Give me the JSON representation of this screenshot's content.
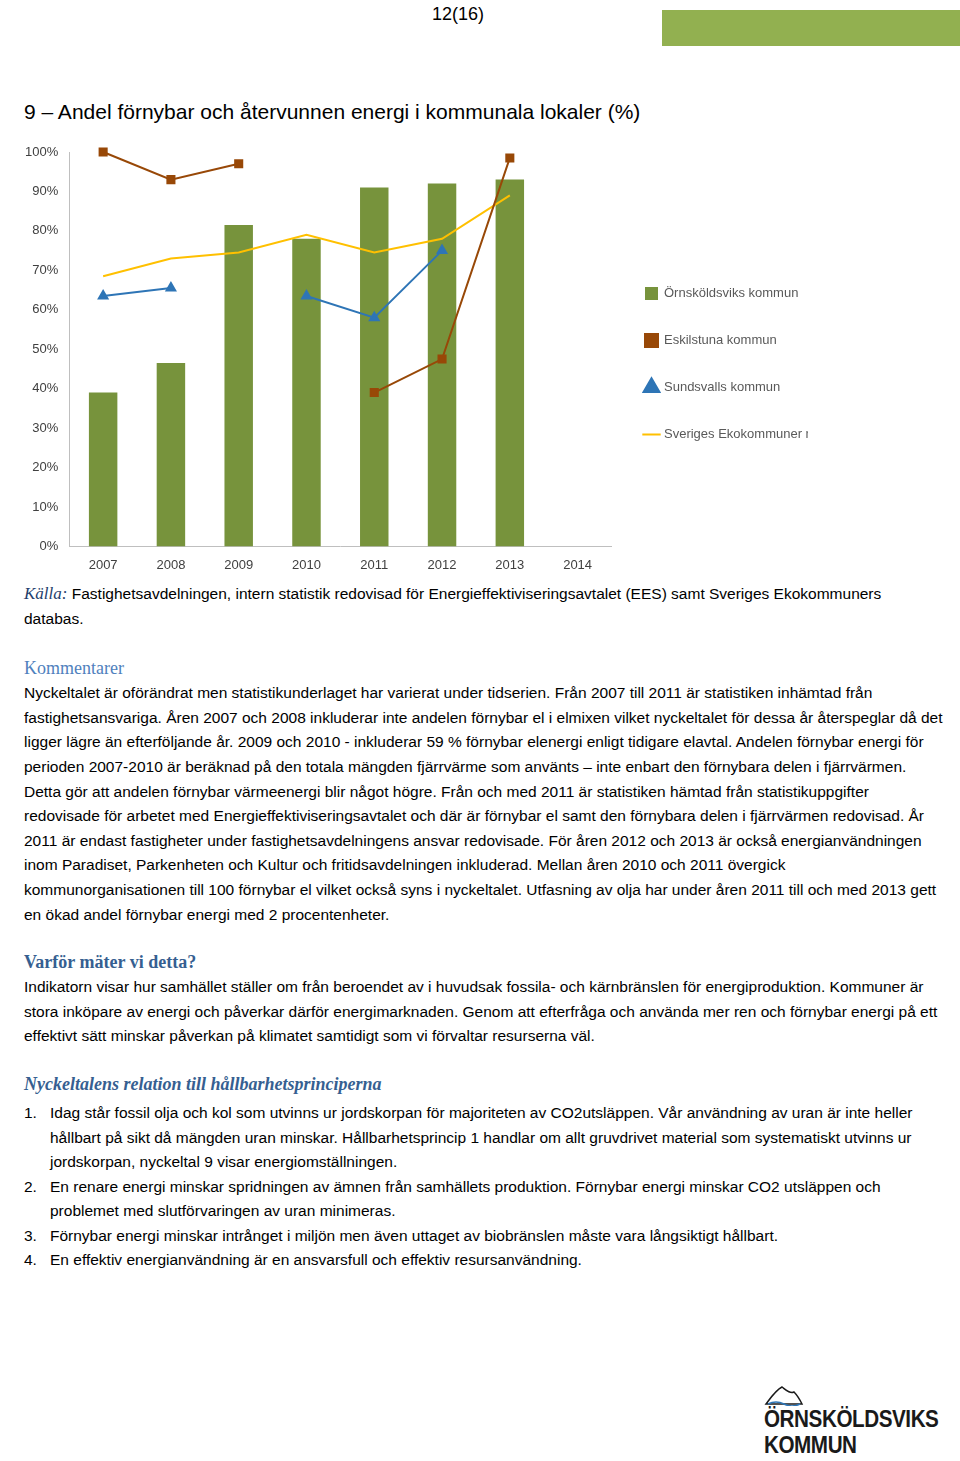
{
  "page": {
    "header": {
      "page_number": "12(16)"
    },
    "source": {
      "label": "Källa:",
      "text": "Fastighetsavdelningen, intern statistik redovisad för Energieffektiviseringsavtalet (EES) samt Sveriges Ekokommuners databas."
    },
    "sections": [
      {
        "heading": "Kommentarer",
        "text": "Nyckeltalet är oförändrat men statistikunderlaget har varierat under tidserien. Från 2007 till 2011 är statistiken inhämtad från fastighetsansvariga. Åren 2007 och 2008 inkluderar inte andelen förnybar el i elmixen vilket nyckeltalet för dessa år återspeglar då det ligger lägre än efterföljande år. 2009 och 2010 - inkluderar 59 % förnybar elenergi enligt tidigare elavtal. Andelen förnybar energi för perioden 2007-2010 är beräknad på den totala mängden fjärrvärme som använts – inte enbart den förnybara delen i fjärrvärmen. Detta gör att andelen förnybar värmeenergi blir något högre. Från och med 2011 är statistiken hämtad från statistikuppgifter redovisade för arbetet med Energieffektiviseringsavtalet och där är förnybar el samt den förnybara delen i fjärrvärmen redovisad. År 2011 är endast fastigheter under fastighetsavdelningens ansvar redovisade. För åren 2012 och 2013 är också energianvändningen inom Paradiset, Parkenheten och Kultur och fritidsavdelningen inkluderad. Mellan åren 2010 och 2011 övergick kommunorganisationen till 100 förnybar el vilket också syns i nyckeltalet. Utfasning av olja har under åren 2011 till och med 2013 gett en ökad andel förnybar energi med 2 procentenheter."
      },
      {
        "heading": "Varför mäter vi detta?",
        "text": "Indikatorn visar hur samhället ställer om från beroendet av i huvudsak fossila- och kärnbränslen för energiproduktion. Kommuner är stora inköpare av energi och påverkar därför energimarknaden. Genom att efterfråga och använda mer ren och förnybar energi på ett effektivt sätt minskar påverkan på klimatet samtidigt som vi förvaltar resurserna väl."
      },
      {
        "heading": "Nyckeltalens relation till hållbarhetsprinciperna",
        "items": [
          {
            "number": "1.",
            "text": "Idag står fossil olja och kol som utvinns ur jordskorpan för majoriteten av CO2utsläppen. Vår användning av uran är inte heller hållbart på sikt då mängden uran minskar. Hållbarhetsprincip 1 handlar om allt gruvdrivet material som systematiskt utvinns ur jordskorpan, nyckeltal 9 visar energiomställningen."
          },
          {
            "number": "2.",
            "text": "En renare energi minskar spridningen av ämnen från samhällets produktion. Förnybar energi minskar CO2 utsläppen och problemet med slutförvaringen av uran minimeras."
          },
          {
            "number": "3.",
            "text": "Förnybar energi minskar intrånget i miljön men även uttaget av biobränslen måste vara långsiktigt hållbart."
          },
          {
            "number": "4.",
            "text": "En effektiv energianvändning är en ansvarsfull och effektiv resursanvändning."
          }
        ]
      }
    ],
    "logo": {
      "line1": "ÖRNSKÖLDSVIKS",
      "line2": "KOMMUN"
    }
  },
  "chart_data": {
    "type": "bar",
    "title": "9 – Andel förnybar och återvunnen energi i kommunala lokaler (%)",
    "categories": [
      "2007",
      "2008",
      "2009",
      "2010",
      "2011",
      "2012",
      "2013",
      "2014"
    ],
    "series": [
      {
        "name": "Örnsköldsviks kommun",
        "type": "bar",
        "color": "#77933C",
        "values": [
          39,
          46.5,
          81.5,
          78,
          91,
          92,
          93,
          null
        ]
      },
      {
        "name": "Eskilstuna kommun",
        "type": "line",
        "color": "#984807",
        "marker": "square",
        "values": [
          100,
          93,
          97,
          null,
          39,
          47.5,
          98.5,
          null
        ]
      },
      {
        "name": "Sundsvalls kommun",
        "type": "line",
        "color": "#2E75B6",
        "marker": "triangle",
        "values": [
          63.5,
          65.5,
          null,
          63.5,
          58,
          75,
          null,
          null
        ]
      },
      {
        "name": "Sveriges Ekokommuner medel",
        "type": "line",
        "color": "#FFC000",
        "marker": "none",
        "values": [
          68.5,
          73,
          74.5,
          79,
          74.5,
          78,
          89,
          null
        ]
      }
    ],
    "ylim": [
      0,
      100
    ],
    "yticks": [
      {
        "value": 0,
        "label": "0%"
      },
      {
        "value": 10,
        "label": "10%"
      },
      {
        "value": 20,
        "label": "20%"
      },
      {
        "value": 30,
        "label": "30%"
      },
      {
        "value": 40,
        "label": "40%"
      },
      {
        "value": 50,
        "label": "50%"
      },
      {
        "value": 60,
        "label": "60%"
      },
      {
        "value": 70,
        "label": "70%"
      },
      {
        "value": 80,
        "label": "80%"
      },
      {
        "value": 90,
        "label": "90%"
      },
      {
        "value": 100,
        "label": "100%"
      }
    ],
    "grid": false,
    "legend": "right"
  }
}
